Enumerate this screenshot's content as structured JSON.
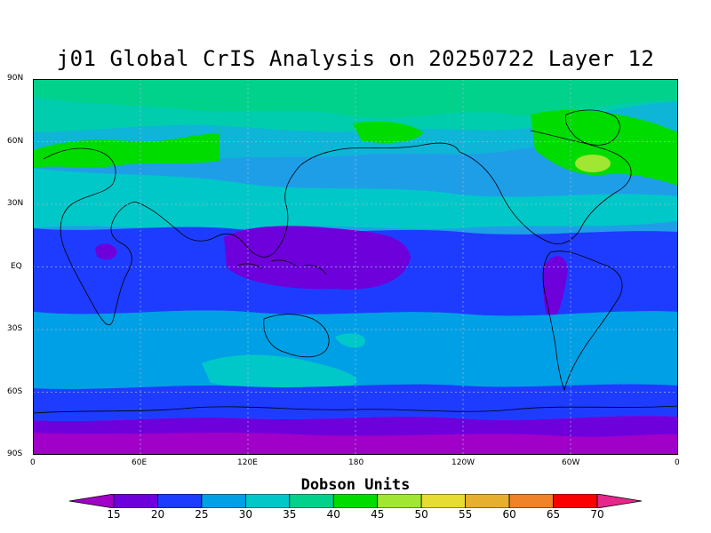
{
  "title": "j01 Global CrIS Analysis on 20250722 Layer 12",
  "map": {
    "lat_labels": [
      "90N",
      "60N",
      "30N",
      "EQ",
      "30S",
      "60S",
      "90S"
    ],
    "lon_labels": [
      "0",
      "60E",
      "120E",
      "180",
      "120W",
      "60W",
      "0"
    ],
    "grid": true,
    "base_color": "#1f9ee8"
  },
  "colorbar": {
    "title": "Dobson Units",
    "levels": [
      "15",
      "20",
      "25",
      "30",
      "35",
      "40",
      "45",
      "50",
      "55",
      "60",
      "65",
      "70"
    ],
    "colors": [
      "#a000c8",
      "#6e00dc",
      "#1e3cff",
      "#00a0e6",
      "#00c8c8",
      "#00d28c",
      "#00dc00",
      "#a0e632",
      "#e6dc32",
      "#e6af2d",
      "#f08228",
      "#fa0000",
      "#e6288c"
    ]
  }
}
